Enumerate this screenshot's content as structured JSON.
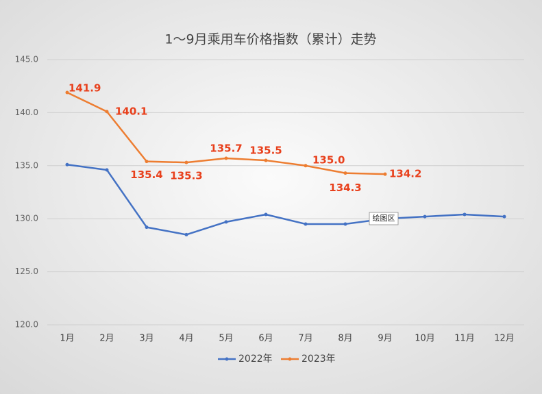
{
  "chart_data": {
    "type": "line",
    "title": "1～9月乘用车价格指数（累计）走势",
    "categories": [
      "1月",
      "2月",
      "3月",
      "4月",
      "5月",
      "6月",
      "7月",
      "8月",
      "9月",
      "10月",
      "11月",
      "12月"
    ],
    "series": [
      {
        "name": "2022年",
        "color": "#4472c4",
        "values": [
          135.1,
          134.6,
          129.2,
          128.5,
          129.7,
          130.4,
          129.5,
          129.5,
          130.0,
          130.2,
          130.4,
          130.2
        ]
      },
      {
        "name": "2023年",
        "color": "#ed7d31",
        "values": [
          141.9,
          140.1,
          135.4,
          135.3,
          135.7,
          135.5,
          135.0,
          134.3,
          134.2,
          null,
          null,
          null
        ],
        "value_labels": [
          "141.9",
          "140.1",
          "135.4",
          "135.3",
          "135.7",
          "135.5",
          "135.0",
          "134.3",
          "134.2",
          null,
          null,
          null
        ]
      }
    ],
    "ylim": [
      120,
      145
    ],
    "yticks": [
      {
        "value": 120,
        "label": "120.0"
      },
      {
        "value": 125,
        "label": "125.0"
      },
      {
        "value": 130,
        "label": "130.0"
      },
      {
        "value": 135,
        "label": "135.0"
      },
      {
        "value": 140,
        "label": "140.0"
      },
      {
        "value": 145,
        "label": "145.0"
      }
    ],
    "grid": true,
    "legend": "bottom",
    "tooltip": "绘图区"
  }
}
